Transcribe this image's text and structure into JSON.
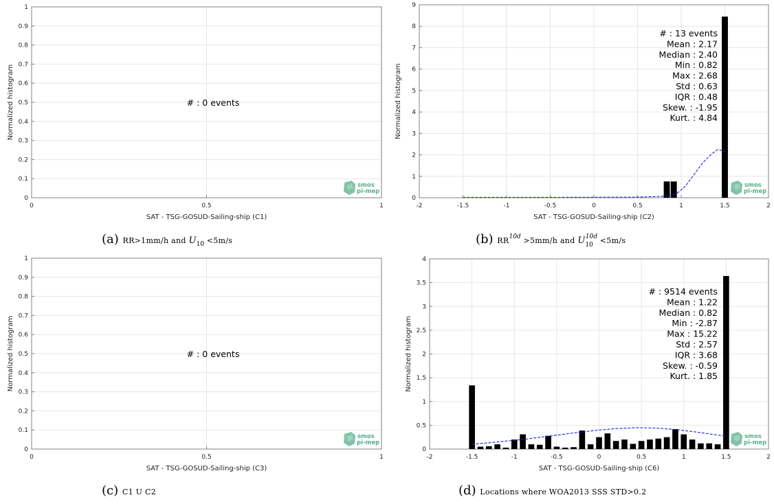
{
  "chart_data": [
    {
      "id": "a",
      "type": "bar",
      "x_range": [
        0,
        1
      ],
      "y_range": [
        0,
        1
      ],
      "xticks": [
        "0",
        "0.5",
        "1"
      ],
      "yticks": [
        "0",
        "0.1",
        "0.2",
        "0.3",
        "0.4",
        "0.5",
        "0.6",
        "0.7",
        "0.8",
        "0.9",
        "1"
      ],
      "xlabel": "SAT - TSG-GOSUD-Sailing-ship (C1)",
      "ylabel": "Normalized histogram",
      "grid": true,
      "bins": [],
      "fit_curve": [],
      "stats": [
        "#  : 0 events"
      ],
      "caption_label": "(a)",
      "caption_parts": [
        "RR>1mm/h and ",
        "U",
        "10",
        " <5m/s"
      ]
    },
    {
      "id": "b",
      "type": "bar",
      "x_range": [
        -2,
        2
      ],
      "y_range": [
        0,
        9
      ],
      "xticks": [
        "-2",
        "-1.5",
        "-1",
        "-0.5",
        "0",
        "0.5",
        "1",
        "1.5",
        "2"
      ],
      "yticks": [
        "0",
        "1",
        "2",
        "3",
        "4",
        "5",
        "6",
        "7",
        "8",
        "9"
      ],
      "xlabel": "SAT - TSG-GOSUD-Sailing-ship (C2)",
      "ylabel": "Normalized histogram",
      "grid": true,
      "bin_width": 0.07,
      "bins": [
        {
          "x": 0.835,
          "y": 0.76
        },
        {
          "x": 0.915,
          "y": 0.76
        },
        {
          "x": 1.5,
          "y": 8.45
        }
      ],
      "fit_curve": [
        [
          -1.5,
          0.02
        ],
        [
          -0.5,
          0.02
        ],
        [
          0.5,
          0.03
        ],
        [
          0.8,
          0.07
        ],
        [
          0.95,
          0.2
        ],
        [
          1.05,
          0.55
        ],
        [
          1.15,
          1.1
        ],
        [
          1.25,
          1.65
        ],
        [
          1.35,
          2.05
        ],
        [
          1.42,
          2.25
        ],
        [
          1.47,
          2.2
        ],
        [
          1.5,
          2.15
        ]
      ],
      "stats": [
        "#  : 13 events",
        "Mean : 2.17",
        "Median : 2.40",
        "Min : 0.82",
        "Max : 2.68",
        "Std : 0.63",
        "IQR : 0.48",
        "Skew. : -1.95",
        "Kurt. : 4.84"
      ],
      "caption_label": "(b)",
      "caption_parts": [
        "RR",
        "10d",
        " >5mm/h and ",
        "U",
        "10",
        "10d",
        " <5m/s"
      ]
    },
    {
      "id": "c",
      "type": "bar",
      "x_range": [
        0,
        1
      ],
      "y_range": [
        0,
        1
      ],
      "xticks": [
        "0",
        "0.5",
        "1"
      ],
      "yticks": [
        "0",
        "0.1",
        "0.2",
        "0.3",
        "0.4",
        "0.5",
        "0.6",
        "0.7",
        "0.8",
        "0.9",
        "1"
      ],
      "xlabel": "SAT - TSG-GOSUD-Sailing-ship (C3)",
      "ylabel": "Normalized histogram",
      "grid": true,
      "bins": [],
      "fit_curve": [],
      "stats": [
        "#  : 0 events"
      ],
      "caption_label": "(c)",
      "caption_parts": [
        "C1 U C2"
      ]
    },
    {
      "id": "d",
      "type": "bar",
      "x_range": [
        -2,
        2
      ],
      "y_range": [
        0,
        4
      ],
      "xticks": [
        "-2",
        "-1.5",
        "-1",
        "-0.5",
        "0",
        "0.5",
        "1",
        "1.5",
        "2"
      ],
      "yticks": [
        "0",
        "0.5",
        "1",
        "1.5",
        "2",
        "2.5",
        "3",
        "3.5",
        "4"
      ],
      "xlabel": "SAT - TSG-GOSUD-Sailing-ship (C6)",
      "ylabel": "Normalized histogram",
      "grid": true,
      "bin_width": 0.07,
      "bins": [
        {
          "x": -1.5,
          "y": 1.34
        },
        {
          "x": -1.4,
          "y": 0.05
        },
        {
          "x": -1.3,
          "y": 0.06
        },
        {
          "x": -1.2,
          "y": 0.1
        },
        {
          "x": -1.1,
          "y": 0.03
        },
        {
          "x": -1.0,
          "y": 0.2
        },
        {
          "x": -0.9,
          "y": 0.31
        },
        {
          "x": -0.8,
          "y": 0.1
        },
        {
          "x": -0.7,
          "y": 0.09
        },
        {
          "x": -0.6,
          "y": 0.28
        },
        {
          "x": -0.5,
          "y": 0.05
        },
        {
          "x": -0.4,
          "y": 0.03
        },
        {
          "x": -0.3,
          "y": 0.04
        },
        {
          "x": -0.2,
          "y": 0.39
        },
        {
          "x": -0.1,
          "y": 0.1
        },
        {
          "x": 0.0,
          "y": 0.25
        },
        {
          "x": 0.1,
          "y": 0.33
        },
        {
          "x": 0.2,
          "y": 0.17
        },
        {
          "x": 0.3,
          "y": 0.2
        },
        {
          "x": 0.4,
          "y": 0.11
        },
        {
          "x": 0.5,
          "y": 0.17
        },
        {
          "x": 0.6,
          "y": 0.2
        },
        {
          "x": 0.7,
          "y": 0.22
        },
        {
          "x": 0.8,
          "y": 0.25
        },
        {
          "x": 0.9,
          "y": 0.42
        },
        {
          "x": 1.0,
          "y": 0.31
        },
        {
          "x": 1.1,
          "y": 0.2
        },
        {
          "x": 1.2,
          "y": 0.12
        },
        {
          "x": 1.3,
          "y": 0.12
        },
        {
          "x": 1.4,
          "y": 0.1
        },
        {
          "x": 1.5,
          "y": 3.64
        }
      ],
      "fit_curve": [
        [
          -1.5,
          0.1
        ],
        [
          -1.2,
          0.15
        ],
        [
          -0.9,
          0.2
        ],
        [
          -0.6,
          0.27
        ],
        [
          -0.3,
          0.34
        ],
        [
          0.0,
          0.4
        ],
        [
          0.2,
          0.43
        ],
        [
          0.45,
          0.45
        ],
        [
          0.7,
          0.44
        ],
        [
          0.9,
          0.41
        ],
        [
          1.1,
          0.37
        ],
        [
          1.3,
          0.32
        ],
        [
          1.5,
          0.27
        ]
      ],
      "stats": [
        "#  : 9514 events",
        "Mean : 1.22",
        "Median : 0.82",
        "Min : -2.87",
        "Max : 15.22",
        "Std : 2.57",
        "IQR : 3.68",
        "Skew. : -0.59",
        "Kurt. : 1.85"
      ],
      "caption_label": "(d)",
      "caption_parts": [
        "Locations where WOA2013 SSS STD>0.2"
      ]
    }
  ],
  "logo": {
    "line1": "smos",
    "line2": "pi-mep",
    "color": "#5aae8c"
  },
  "colors": {
    "bar": "#000000",
    "fit": "#1f1fd2",
    "grid": "#e6e6e6",
    "axis": "#808080"
  }
}
